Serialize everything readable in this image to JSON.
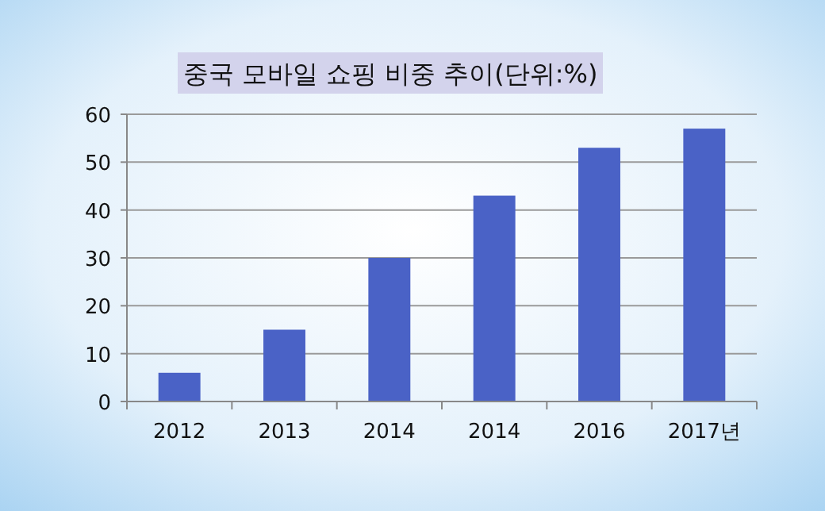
{
  "chart_data": {
    "type": "bar",
    "title": "중국 모바일 쇼핑 비중 추이(단위:%)",
    "categories": [
      "2012",
      "2013",
      "2014",
      "2014",
      "2016",
      "2017년"
    ],
    "values": [
      6,
      15,
      30,
      43,
      53,
      57
    ],
    "color": "#4a62c6",
    "ylim": [
      0,
      60
    ],
    "yticks": [
      0,
      10,
      20,
      30,
      40,
      50,
      60
    ],
    "grid": "y"
  }
}
